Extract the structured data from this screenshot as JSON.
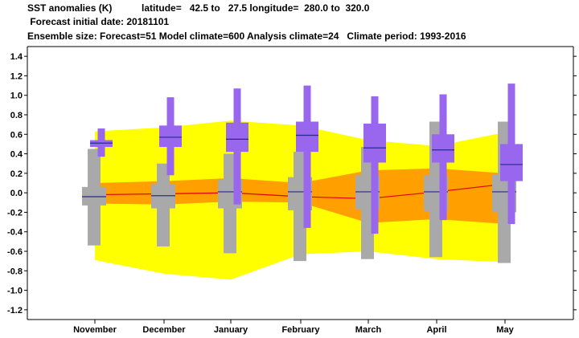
{
  "header": {
    "line1": "SST anomalies (K)           latitude=   42.5 to   27.5 longitude=  280.0 to  320.0",
    "line2": " Forecast initial date: 20181101",
    "line3": "Ensemble size: Forecast=51 Model climate=600 Analysis climate=24   Climate period: 1993-2016"
  },
  "chart_data": {
    "type": "box",
    "title": "SST anomalies (K)",
    "ylim": [
      -1.3,
      1.5
    ],
    "yticks": [
      "1.4",
      "1.2",
      "1.0",
      "0.8",
      "0.6",
      "0.4",
      "0.2",
      "0.0",
      "-0.2",
      "-0.4",
      "-0.6",
      "-0.8",
      "-1.0",
      "-1.2"
    ],
    "categories": [
      "November",
      "December",
      "January",
      "February",
      "March",
      "April",
      "May"
    ],
    "climate_band_outer": {
      "upper": [
        0.63,
        0.67,
        0.74,
        0.69,
        0.54,
        0.48,
        0.62
      ],
      "lower": [
        -0.69,
        -0.83,
        -0.89,
        -0.63,
        -0.6,
        -0.68,
        -0.71
      ]
    },
    "climate_band_inner": {
      "upper": [
        0.1,
        0.12,
        0.15,
        0.1,
        0.23,
        0.25,
        0.2
      ],
      "lower": [
        -0.11,
        -0.12,
        -0.09,
        -0.1,
        -0.31,
        -0.27,
        -0.32
      ]
    },
    "climate_median_line": [
      -0.02,
      -0.01,
      0.0,
      -0.04,
      -0.06,
      0.01,
      0.09
    ],
    "model_climate": [
      {
        "min": -0.54,
        "p25": -0.13,
        "median": -0.04,
        "p75": 0.06,
        "max": 0.45
      },
      {
        "min": -0.55,
        "p25": -0.16,
        "median": -0.03,
        "p75": 0.09,
        "max": 0.3
      },
      {
        "min": -0.62,
        "p25": -0.16,
        "median": 0.01,
        "p75": 0.14,
        "max": 0.4
      },
      {
        "min": -0.7,
        "p25": -0.18,
        "median": 0.01,
        "p75": 0.16,
        "max": 0.42
      },
      {
        "min": -0.68,
        "p25": -0.17,
        "median": 0.01,
        "p75": 0.18,
        "max": 0.47
      },
      {
        "min": -0.66,
        "p25": -0.19,
        "median": 0.01,
        "p75": 0.18,
        "max": 0.73
      },
      {
        "min": -0.72,
        "p25": -0.2,
        "median": 0.01,
        "p75": 0.19,
        "max": 0.73
      }
    ],
    "forecast": [
      {
        "min": 0.37,
        "p25": 0.47,
        "median": 0.51,
        "p75": 0.54,
        "max": 0.66
      },
      {
        "min": 0.18,
        "p25": 0.47,
        "median": 0.57,
        "p75": 0.69,
        "max": 0.98
      },
      {
        "min": -0.12,
        "p25": 0.42,
        "median": 0.55,
        "p75": 0.72,
        "max": 1.07
      },
      {
        "min": -0.36,
        "p25": 0.42,
        "median": 0.59,
        "p75": 0.73,
        "max": 1.1
      },
      {
        "min": -0.42,
        "p25": 0.31,
        "median": 0.46,
        "p75": 0.71,
        "max": 0.99
      },
      {
        "min": -0.28,
        "p25": 0.31,
        "median": 0.44,
        "p75": 0.6,
        "max": 1.01
      },
      {
        "min": -0.32,
        "p25": 0.12,
        "median": 0.29,
        "p75": 0.5,
        "max": 1.12
      }
    ],
    "colors": {
      "outer_band": "#ffff00",
      "inner_band": "#ffa000",
      "climate_line": "#e00000",
      "model_box": "#a9a9a9",
      "forecast_box": "#9966ee",
      "median": "#2a2a8a"
    }
  }
}
